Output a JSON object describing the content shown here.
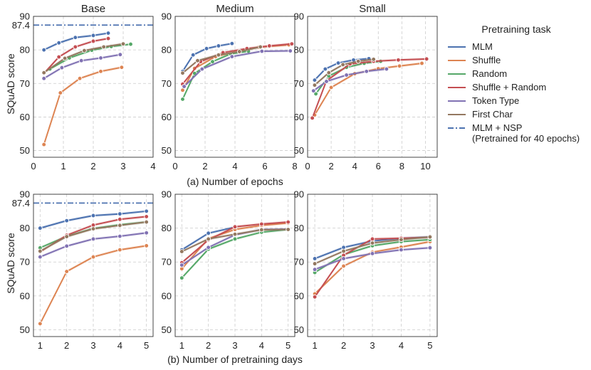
{
  "legend": {
    "title": "Pretraining task",
    "entries": [
      {
        "name": "MLM",
        "color": "#4c72b0",
        "style": "solid"
      },
      {
        "name": "Shuffle",
        "color": "#dd8452",
        "style": "solid"
      },
      {
        "name": "Random",
        "color": "#55a868",
        "style": "solid"
      },
      {
        "name": "Shuffle + Random",
        "color": "#c44e52",
        "style": "solid"
      },
      {
        "name": "Token Type",
        "color": "#8172b3",
        "style": "solid"
      },
      {
        "name": "First Char",
        "color": "#937860",
        "style": "solid"
      },
      {
        "name": "MLM + NSP",
        "name_line2": "(Pretrained for 40 epochs)",
        "color": "#4c72b0",
        "style": "dashdot"
      }
    ]
  },
  "row_captions": [
    "(a) Number of epochs",
    "(b) Number of pretraining days"
  ],
  "ylabel": "SQuAD score",
  "chart_data": [
    {
      "type": "line",
      "title": "Base",
      "row": 0,
      "xlabel": "",
      "xlim": [
        0,
        4
      ],
      "xticks": [
        "0",
        "1",
        "2",
        "3",
        "4"
      ],
      "ylim": [
        48,
        90
      ],
      "yticks": [
        "50",
        "60",
        "70",
        "80",
        "90"
      ],
      "reference_line": {
        "name": "MLM + NSP",
        "value": 87.4,
        "label": "87.4"
      },
      "series": [
        {
          "name": "MLM",
          "x": [
            0.35,
            0.85,
            1.4,
            2.0,
            2.5
          ],
          "y": [
            80.0,
            82.1,
            83.7,
            84.3,
            85.0
          ]
        },
        {
          "name": "Shuffle",
          "x": [
            0.35,
            0.9,
            1.55,
            2.25,
            2.95
          ],
          "y": [
            51.8,
            67.2,
            71.5,
            73.6,
            74.8
          ]
        },
        {
          "name": "Random",
          "x": [
            0.55,
            1.2,
            1.95,
            2.6,
            3.25
          ],
          "y": [
            74.3,
            77.6,
            79.9,
            81.0,
            81.7
          ]
        },
        {
          "name": "Shuffle + Random",
          "x": [
            0.35,
            0.85,
            1.4,
            2.0,
            2.5
          ],
          "y": [
            73.0,
            77.9,
            80.9,
            82.6,
            83.4
          ]
        },
        {
          "name": "Token Type",
          "x": [
            0.35,
            0.95,
            1.6,
            2.25,
            2.9
          ],
          "y": [
            71.5,
            74.7,
            76.8,
            77.6,
            78.6
          ]
        },
        {
          "name": "First Char",
          "x": [
            0.35,
            1.05,
            1.7,
            2.35,
            3.0
          ],
          "y": [
            73.2,
            77.5,
            79.8,
            80.9,
            81.8
          ]
        }
      ]
    },
    {
      "type": "line",
      "title": "Medium",
      "row": 0,
      "xlabel": "Number of epochs",
      "xlim": [
        0,
        8
      ],
      "xticks": [
        "0",
        "2",
        "4",
        "6",
        "8"
      ],
      "ylim": [
        48,
        90
      ],
      "yticks": [
        "50",
        "60",
        "70",
        "80",
        "90"
      ],
      "series": [
        {
          "name": "MLM",
          "x": [
            0.5,
            1.2,
            2.1,
            2.9,
            3.8
          ],
          "y": [
            73.6,
            78.5,
            80.4,
            81.2,
            81.9
          ]
        },
        {
          "name": "Shuffle",
          "x": [
            0.5,
            1.3,
            2.7,
            4.2,
            5.6,
            7.6
          ],
          "y": [
            68.0,
            74.5,
            78.0,
            79.6,
            80.8,
            81.5
          ]
        },
        {
          "name": "Random",
          "x": [
            0.5,
            1.3,
            2.5,
            3.7,
            4.9
          ],
          "y": [
            65.3,
            73.0,
            76.5,
            78.8,
            79.6
          ]
        },
        {
          "name": "Shuffle + Random",
          "x": [
            0.5,
            1.7,
            3.2,
            4.8,
            6.3,
            7.8
          ],
          "y": [
            69.8,
            76.5,
            79.2,
            80.4,
            81.2,
            81.8
          ]
        },
        {
          "name": "Token Type",
          "x": [
            0.6,
            1.8,
            3.8,
            5.8,
            7.7
          ],
          "y": [
            69.1,
            74.3,
            78.0,
            79.6,
            79.7
          ]
        },
        {
          "name": "First Char",
          "x": [
            0.5,
            1.5,
            2.9,
            4.3,
            5.7
          ],
          "y": [
            73.1,
            76.8,
            78.5,
            79.5,
            80.9
          ]
        }
      ]
    },
    {
      "type": "line",
      "title": "Small",
      "row": 0,
      "xlabel": "",
      "xlim": [
        0,
        11
      ],
      "xticks": [
        "0",
        "2",
        "4",
        "6",
        "8",
        "10"
      ],
      "ylim": [
        48,
        90
      ],
      "yticks": [
        "50",
        "60",
        "70",
        "80",
        "90"
      ],
      "series": [
        {
          "name": "MLM",
          "x": [
            0.6,
            1.5,
            2.6,
            3.9,
            5.2
          ],
          "y": [
            71.0,
            74.3,
            76.1,
            77.0,
            77.4
          ]
        },
        {
          "name": "Shuffle",
          "x": [
            0.6,
            2.0,
            4.0,
            6.0,
            7.8,
            9.7
          ],
          "y": [
            60.6,
            68.8,
            72.9,
            74.4,
            75.2,
            76.0
          ]
        },
        {
          "name": "Random",
          "x": [
            0.7,
            1.8,
            3.3,
            4.8,
            6.2
          ],
          "y": [
            66.9,
            72.2,
            74.8,
            76.0,
            76.6
          ]
        },
        {
          "name": "Shuffle + Random",
          "x": [
            0.4,
            1.6,
            3.6,
            5.6,
            7.7,
            10.1
          ],
          "y": [
            59.7,
            70.8,
            75.8,
            76.6,
            77.0,
            77.3
          ]
        },
        {
          "name": "Token Type",
          "x": [
            0.5,
            1.6,
            3.3,
            5.0,
            6.7
          ],
          "y": [
            67.8,
            70.6,
            72.5,
            73.6,
            74.3
          ]
        },
        {
          "name": "First Char",
          "x": [
            0.6,
            1.8,
            3.0,
            4.3,
            5.6
          ],
          "y": [
            69.5,
            73.2,
            75.6,
            76.6,
            77.2
          ]
        }
      ]
    },
    {
      "type": "line",
      "title": "",
      "row": 1,
      "xlabel": "",
      "xlim": [
        0.75,
        5.25
      ],
      "xticks": [
        "1",
        "2",
        "3",
        "4",
        "5"
      ],
      "ylim": [
        48,
        90
      ],
      "yticks": [
        "50",
        "60",
        "70",
        "80",
        "90"
      ],
      "reference_line": {
        "name": "MLM + NSP",
        "value": 87.4,
        "label": "87.4"
      },
      "series": [
        {
          "name": "MLM",
          "x": [
            1,
            2,
            3,
            4,
            5
          ],
          "y": [
            80.0,
            82.2,
            83.7,
            84.2,
            85.0
          ]
        },
        {
          "name": "Shuffle",
          "x": [
            1,
            2,
            3,
            4,
            5
          ],
          "y": [
            51.8,
            67.2,
            71.5,
            73.6,
            74.8
          ]
        },
        {
          "name": "Random",
          "x": [
            1,
            2,
            3,
            4,
            5
          ],
          "y": [
            74.2,
            77.6,
            79.9,
            81.0,
            81.8
          ]
        },
        {
          "name": "Shuffle + Random",
          "x": [
            1,
            2,
            3,
            4,
            5
          ],
          "y": [
            73.0,
            77.9,
            80.9,
            82.6,
            83.4
          ]
        },
        {
          "name": "Token Type",
          "x": [
            1,
            2,
            3,
            4,
            5
          ],
          "y": [
            71.5,
            74.7,
            76.8,
            77.6,
            78.6
          ]
        },
        {
          "name": "First Char",
          "x": [
            1,
            2,
            3,
            4,
            5
          ],
          "y": [
            73.2,
            77.5,
            79.8,
            80.8,
            81.8
          ]
        }
      ]
    },
    {
      "type": "line",
      "title": "",
      "row": 1,
      "xlabel": "Number of pretraining days",
      "xlim": [
        0.75,
        5.25
      ],
      "xticks": [
        "1",
        "2",
        "3",
        "4",
        "5"
      ],
      "ylim": [
        48,
        90
      ],
      "yticks": [
        "50",
        "60",
        "70",
        "80",
        "90"
      ],
      "series": [
        {
          "name": "MLM",
          "x": [
            1,
            2,
            3
          ],
          "y": [
            73.6,
            78.5,
            80.3
          ]
        },
        {
          "name": "Shuffle",
          "x": [
            1,
            2,
            3,
            4,
            5
          ],
          "y": [
            68.0,
            76.9,
            79.6,
            80.8,
            81.5
          ]
        },
        {
          "name": "Random",
          "x": [
            1,
            2,
            3,
            4,
            5
          ],
          "y": [
            65.3,
            73.8,
            76.8,
            78.8,
            79.6
          ]
        },
        {
          "name": "Shuffle + Random",
          "x": [
            1,
            2,
            3,
            4,
            5
          ],
          "y": [
            69.8,
            76.5,
            80.4,
            81.2,
            81.8
          ]
        },
        {
          "name": "Token Type",
          "x": [
            1,
            2,
            3,
            4,
            5
          ],
          "y": [
            69.1,
            74.3,
            78.0,
            79.6,
            79.7
          ]
        },
        {
          "name": "First Char",
          "x": [
            1,
            2,
            3,
            4,
            5
          ],
          "y": [
            73.1,
            76.8,
            78.2,
            79.5,
            79.6
          ]
        }
      ]
    },
    {
      "type": "line",
      "title": "",
      "row": 1,
      "xlabel": "",
      "xlim": [
        0.75,
        5.25
      ],
      "xticks": [
        "1",
        "2",
        "3",
        "4",
        "5"
      ],
      "ylim": [
        48,
        90
      ],
      "yticks": [
        "50",
        "60",
        "70",
        "80",
        "90"
      ],
      "series": [
        {
          "name": "MLM",
          "x": [
            1,
            2,
            3,
            4,
            5
          ],
          "y": [
            71.0,
            74.3,
            76.2,
            77.0,
            77.4
          ]
        },
        {
          "name": "Shuffle",
          "x": [
            1,
            2,
            3,
            4,
            5
          ],
          "y": [
            60.6,
            68.8,
            72.9,
            74.4,
            76.0
          ]
        },
        {
          "name": "Random",
          "x": [
            1,
            2,
            3,
            4,
            5
          ],
          "y": [
            66.9,
            72.2,
            74.8,
            76.0,
            76.6
          ]
        },
        {
          "name": "Shuffle + Random",
          "x": [
            1,
            2,
            3,
            4,
            5
          ],
          "y": [
            59.7,
            72.0,
            76.8,
            77.0,
            77.3
          ]
        },
        {
          "name": "Token Type",
          "x": [
            1,
            2,
            3,
            4,
            5
          ],
          "y": [
            67.8,
            71.0,
            72.5,
            73.6,
            74.2
          ]
        },
        {
          "name": "First Char",
          "x": [
            1,
            2,
            3,
            4,
            5
          ],
          "y": [
            69.5,
            73.2,
            75.6,
            76.6,
            77.4
          ]
        }
      ]
    }
  ]
}
